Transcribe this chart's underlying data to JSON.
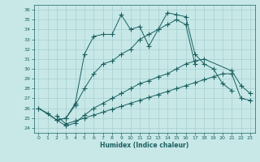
{
  "xlabel": "Humidex (Indice chaleur)",
  "xlim": [
    -0.5,
    23.5
  ],
  "ylim": [
    23.5,
    36.5
  ],
  "yticks": [
    24,
    25,
    26,
    27,
    28,
    29,
    30,
    31,
    32,
    33,
    34,
    35,
    36
  ],
  "xticks": [
    0,
    1,
    2,
    3,
    4,
    5,
    6,
    7,
    8,
    9,
    10,
    11,
    12,
    13,
    14,
    15,
    16,
    17,
    18,
    19,
    20,
    21,
    22,
    23
  ],
  "bg_color": "#c8e8e8",
  "grid_color": "#a0c8c8",
  "line_color": "#1a6060",
  "line1_x": [
    0,
    1,
    2,
    3,
    4,
    5,
    6,
    7,
    8,
    9,
    10,
    11,
    12,
    13,
    14,
    15,
    16,
    17,
    18,
    19,
    20,
    21
  ],
  "line1_y": [
    26.0,
    25.5,
    24.8,
    25.0,
    26.5,
    31.5,
    33.3,
    33.5,
    33.5,
    35.5,
    34.0,
    34.3,
    32.3,
    34.0,
    35.7,
    35.5,
    35.3,
    31.5,
    30.5,
    30.0,
    28.5,
    27.8
  ],
  "line2_x": [
    0,
    2,
    3,
    4,
    5,
    6,
    7,
    8,
    9,
    10,
    11,
    12,
    13,
    14,
    15,
    16,
    17
  ],
  "line2_y": [
    26.0,
    24.8,
    25.0,
    26.3,
    28.0,
    29.5,
    30.5,
    30.8,
    31.5,
    32.0,
    33.0,
    33.5,
    34.0,
    34.5,
    35.0,
    34.5,
    30.5
  ],
  "line3_x": [
    2,
    3,
    4,
    5,
    6,
    7,
    8,
    9,
    10,
    11,
    12,
    13,
    14,
    15,
    16,
    17,
    18,
    21,
    22,
    23
  ],
  "line3_y": [
    24.8,
    24.2,
    24.5,
    25.3,
    26.0,
    26.5,
    27.0,
    27.5,
    28.0,
    28.5,
    28.8,
    29.2,
    29.5,
    30.0,
    30.5,
    30.8,
    31.0,
    29.8,
    28.3,
    27.5
  ],
  "line4_x": [
    2,
    3,
    4,
    5,
    6,
    7,
    8,
    9,
    10,
    11,
    12,
    13,
    14,
    15,
    16,
    17,
    18,
    19,
    20,
    21,
    22,
    23
  ],
  "line4_y": [
    25.2,
    24.4,
    24.7,
    25.0,
    25.3,
    25.6,
    25.9,
    26.2,
    26.5,
    26.8,
    27.1,
    27.4,
    27.7,
    28.0,
    28.3,
    28.6,
    28.9,
    29.2,
    29.5,
    29.5,
    27.0,
    26.8
  ]
}
